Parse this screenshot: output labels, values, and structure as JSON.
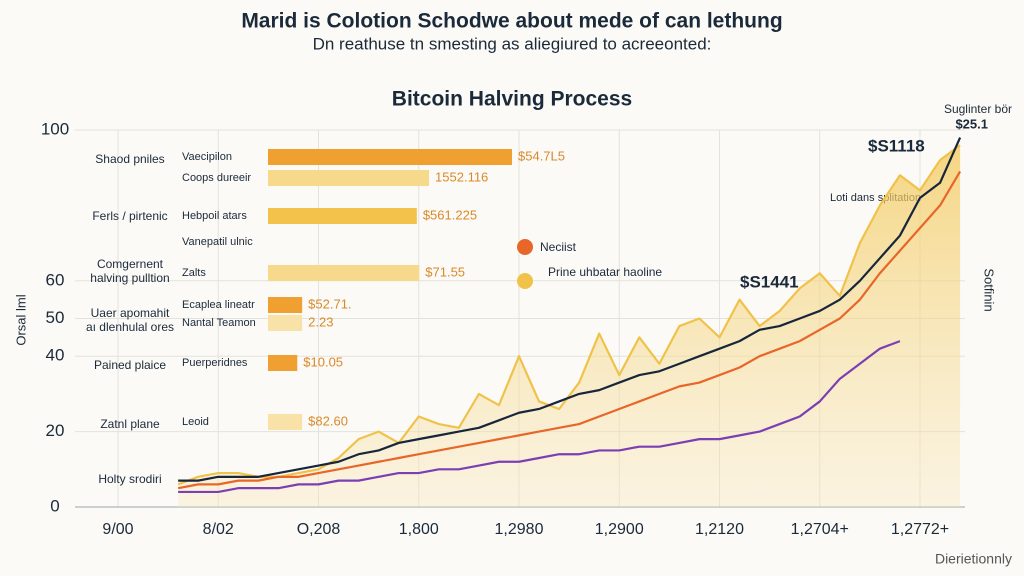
{
  "header": {
    "title": "Marid is Colotion Schodwe about mede of can lethung",
    "subtitle": "Dn reathuse tn smesting as aliegiured to acreeonted:"
  },
  "left_labels": [
    [
      "Shaod pniles"
    ],
    [
      "Ferls / pirtenic"
    ],
    [
      "Comgernent",
      "halving pulltion"
    ],
    [
      "Uaer apomahit",
      "aı dlenhulal ores"
    ],
    [
      "Pained plaice"
    ],
    [
      "Zatnl plane"
    ],
    [
      "Holty srodiri"
    ]
  ],
  "side_texts": {
    "left": "Orsal lml",
    "right": "Sotfinin",
    "footer": "Dierietionnly"
  },
  "chart_data": [
    {
      "type": "line",
      "title": "Bitcoin Halving Process",
      "categories": [
        "9/00",
        null,
        null,
        null,
        null,
        "8/02",
        null,
        null,
        null,
        null,
        "O,208",
        null,
        null,
        null,
        null,
        "1,800",
        null,
        null,
        null,
        null,
        "1,2980",
        null,
        null,
        null,
        null,
        "1,2900",
        null,
        null,
        null,
        null,
        "1,2120",
        null,
        null,
        null,
        null,
        "1,2704+",
        null,
        null,
        null,
        null,
        "1,2772+",
        null,
        null
      ],
      "ylim": [
        0,
        100
      ],
      "yticks": [
        0,
        20,
        40,
        50,
        60,
        100
      ],
      "grid": true,
      "series": [
        {
          "name": "Prine uhbatar haoline",
          "color": "#f0c24a",
          "area": true,
          "values": [
            null,
            null,
            null,
            6,
            8,
            9,
            9,
            8,
            8,
            9,
            10,
            13,
            18,
            20,
            17,
            24,
            22,
            21,
            30,
            27,
            40,
            28,
            26,
            33,
            46,
            35,
            45,
            38,
            48,
            50,
            45,
            55,
            48,
            52,
            58,
            62,
            56,
            70,
            80,
            88,
            84,
            92,
            96
          ]
        },
        {
          "color": "#7b3fb3",
          "values": [
            null,
            null,
            null,
            4,
            4,
            4,
            5,
            5,
            5,
            6,
            6,
            7,
            7,
            8,
            9,
            9,
            10,
            10,
            11,
            12,
            12,
            13,
            14,
            14,
            15,
            15,
            16,
            16,
            17,
            18,
            18,
            19,
            20,
            22,
            24,
            28,
            34,
            38,
            42,
            44,
            null,
            null,
            null
          ]
        },
        {
          "name": "Neciist",
          "color": "#e8662a",
          "values": [
            null,
            null,
            null,
            5,
            6,
            6,
            7,
            7,
            8,
            8,
            9,
            10,
            11,
            12,
            13,
            14,
            15,
            16,
            17,
            18,
            19,
            20,
            21,
            22,
            24,
            26,
            28,
            30,
            32,
            33,
            35,
            37,
            40,
            42,
            44,
            47,
            50,
            55,
            62,
            68,
            74,
            80,
            89
          ]
        },
        {
          "color": "#17263a",
          "values": [
            null,
            null,
            null,
            7,
            7,
            8,
            8,
            8,
            9,
            10,
            11,
            12,
            14,
            15,
            17,
            18,
            19,
            20,
            21,
            23,
            25,
            26,
            28,
            30,
            31,
            33,
            35,
            36,
            38,
            40,
            42,
            44,
            47,
            48,
            50,
            52,
            55,
            60,
            66,
            72,
            82,
            86,
            98
          ]
        }
      ],
      "annotations": [
        "$S1118",
        "Loti dans splitation",
        "$S1441",
        "Suglinter bör",
        "$25.1"
      ]
    },
    {
      "type": "bar",
      "orientation": "horizontal",
      "categories": [
        "Vaecipilon",
        "Coops dureeir",
        "Hebpoil atars",
        "Vanepatil ulnic",
        "Zalts",
        "Ecaplea lineatr",
        "Nantal Teamon",
        "Puerperidnes",
        "Leoid"
      ],
      "xlim": [
        0,
        100
      ],
      "values": [
        100,
        66,
        61,
        null,
        62,
        14,
        14,
        12,
        14
      ],
      "colors": [
        "#f0a030",
        "#f6d98a",
        "#f2c24a",
        "#f6d98a",
        "#f6d98a",
        "#f0a030",
        "#f8e2a8",
        "#f0a030",
        "#f8e2a8"
      ],
      "bar_texts": [
        "$54.7L5",
        "1552.116",
        "$561.225",
        null,
        "$71.55",
        "$52.71.",
        "2.23",
        "$10.05",
        "$82.60"
      ]
    }
  ]
}
